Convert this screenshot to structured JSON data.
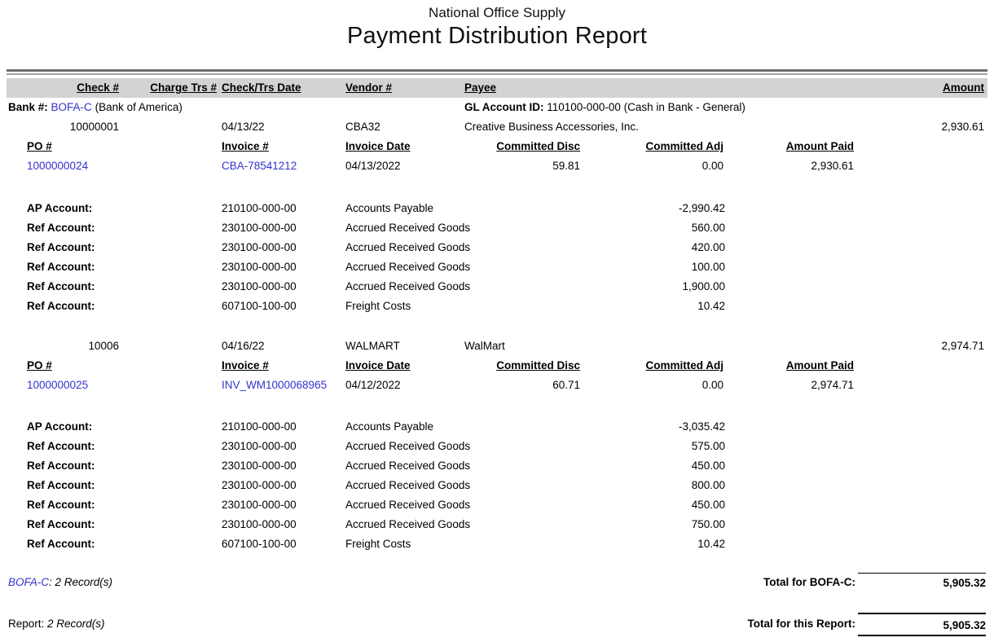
{
  "report": {
    "company": "National Office Supply",
    "title": "Payment Distribution Report"
  },
  "colors": {
    "link_blue": "#3232cc",
    "header_band_gray": "#d3d3d3",
    "rule_dark_gray": "#6f6f6f",
    "rule_light_gray": "#a3a3a3"
  },
  "header": {
    "columns": [
      "Check #",
      "Charge Trs #",
      "Check/Trs Date",
      "Vendor #",
      "Payee",
      "Amount"
    ],
    "subcolumns": [
      "PO #",
      "Invoice #",
      "Invoice Date",
      "Committed Disc",
      "Committed Adj",
      "Amount Paid"
    ]
  },
  "bank": {
    "label": "Bank #:",
    "code": "BOFA-C",
    "name": "(Bank of America)",
    "gl_label": "GL Account ID:",
    "gl_value": "110100-000-00 (Cash in Bank - General)"
  },
  "checks": [
    {
      "check_no": "10000001",
      "date": "04/13/22",
      "vendor_no": "CBA32",
      "payee": "Creative Business Accessories, Inc.",
      "amount": "2,930.61",
      "invoices": [
        {
          "po_no": "1000000024",
          "invoice_no": "CBA-78541212",
          "invoice_date": "04/13/2022",
          "committed_disc": "59.81",
          "committed_adj": "0.00",
          "amount_paid": "2,930.61"
        }
      ],
      "distributions": [
        {
          "label": "AP Account:",
          "account": "210100-000-00",
          "description": "Accounts Payable",
          "amount": "-2,990.42"
        },
        {
          "label": "Ref Account:",
          "account": "230100-000-00",
          "description": "Accrued Received Goods",
          "amount": "560.00"
        },
        {
          "label": "Ref Account:",
          "account": "230100-000-00",
          "description": "Accrued Received Goods",
          "amount": "420.00"
        },
        {
          "label": "Ref Account:",
          "account": "230100-000-00",
          "description": "Accrued Received Goods",
          "amount": "100.00"
        },
        {
          "label": "Ref Account:",
          "account": "230100-000-00",
          "description": "Accrued Received Goods",
          "amount": "1,900.00"
        },
        {
          "label": "Ref Account:",
          "account": "607100-100-00",
          "description": "Freight Costs",
          "amount": "10.42"
        }
      ]
    },
    {
      "check_no": "10006",
      "date": "04/16/22",
      "vendor_no": "WALMART",
      "payee": "WalMart",
      "amount": "2,974.71",
      "invoices": [
        {
          "po_no": "1000000025",
          "invoice_no": "INV_WM1000068965",
          "invoice_date": "04/12/2022",
          "committed_disc": "60.71",
          "committed_adj": "0.00",
          "amount_paid": "2,974.71"
        }
      ],
      "distributions": [
        {
          "label": "AP Account:",
          "account": "210100-000-00",
          "description": "Accounts Payable",
          "amount": "-3,035.42"
        },
        {
          "label": "Ref Account:",
          "account": "230100-000-00",
          "description": "Accrued Received Goods",
          "amount": "575.00"
        },
        {
          "label": "Ref Account:",
          "account": "230100-000-00",
          "description": "Accrued Received Goods",
          "amount": "450.00"
        },
        {
          "label": "Ref Account:",
          "account": "230100-000-00",
          "description": "Accrued Received Goods",
          "amount": "800.00"
        },
        {
          "label": "Ref Account:",
          "account": "230100-000-00",
          "description": "Accrued Received Goods",
          "amount": "450.00"
        },
        {
          "label": "Ref Account:",
          "account": "230100-000-00",
          "description": "Accrued Received Goods",
          "amount": "750.00"
        },
        {
          "label": "Ref Account:",
          "account": "607100-100-00",
          "description": "Freight Costs",
          "amount": "10.42"
        }
      ]
    }
  ],
  "totals": {
    "bank_code": "BOFA-C",
    "bank_records": ": 2 Record(s)",
    "bank_total_label": "Total for BOFA-C:",
    "bank_total_amount": "5,905.32",
    "report_label": "Report:",
    "report_records": " 2 Record(s)",
    "report_total_label": "Total for this Report:",
    "report_total_amount": "5,905.32"
  }
}
